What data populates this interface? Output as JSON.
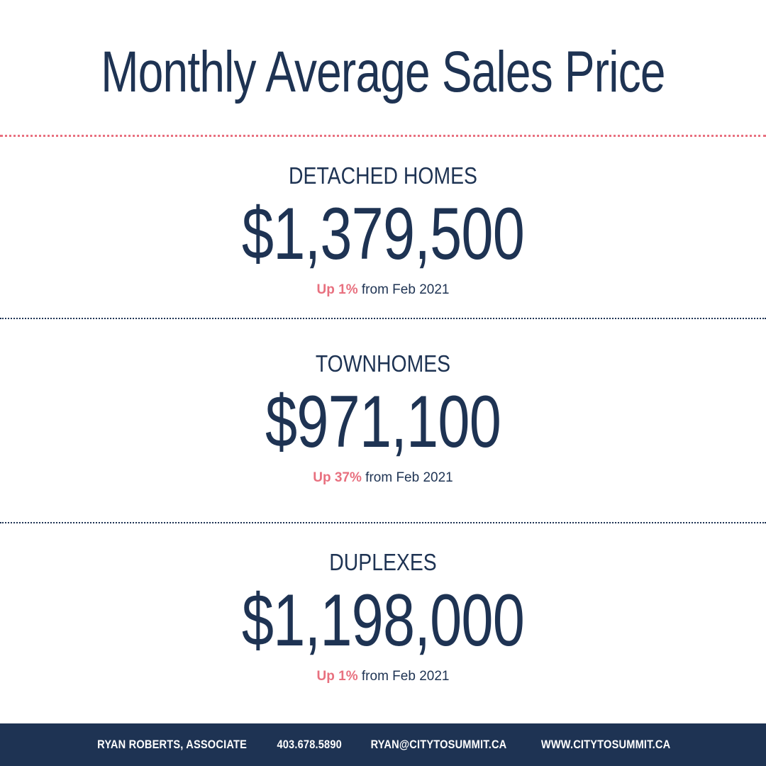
{
  "title": "Monthly Average Sales Price",
  "sections": [
    {
      "label": "DETACHED HOMES",
      "price": "$1,379,500",
      "change": "Up 1%",
      "comparison": "from Feb 2021"
    },
    {
      "label": "TOWNHOMES",
      "price": "$971,100",
      "change": "Up 37%",
      "comparison": "from Feb 2021"
    },
    {
      "label": "DUPLEXES",
      "price": "$1,198,000",
      "change": "Up 1%",
      "comparison": "from Feb 2021"
    }
  ],
  "footer": {
    "name": "RYAN ROBERTS, ASSOCIATE",
    "phone": "403.678.5890",
    "email": "RYAN@CITYTOSUMMIT.CA",
    "website": "WWW.CITYTOSUMMIT.CA"
  },
  "colors": {
    "navy": "#1e3353",
    "pink": "#e8707f",
    "background": "#ffffff"
  }
}
